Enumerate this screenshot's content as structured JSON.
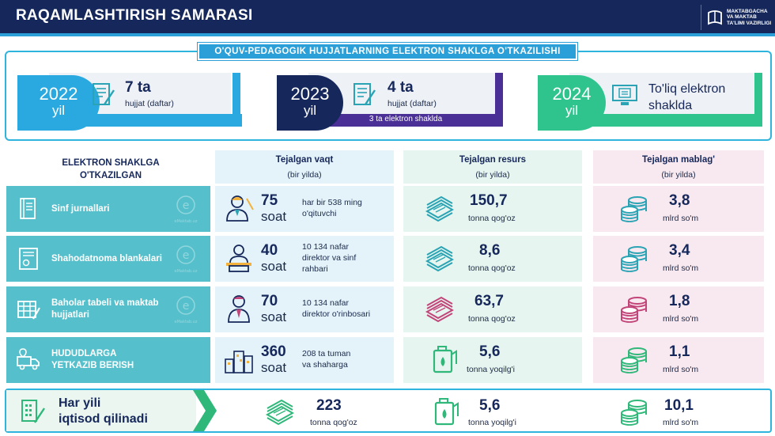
{
  "header": {
    "title": "RAQAMLASHTIRISH SAMARASI",
    "logo_lines": [
      "MAKTABGACHA",
      "VA MAKTAB",
      "TA'LIMI VAZIRLIGI"
    ]
  },
  "top": {
    "banner": "O'QUV-PEDAGOGIK HUJJATLARNING ELEKTRON SHAKLGA O'TKAZILISHI",
    "years": [
      {
        "year": "2022",
        "label": "yil",
        "count": "7 ta",
        "sub": "hujjat (daftar)",
        "color": "#29a9e0",
        "icon": "document-icon"
      },
      {
        "year": "2023",
        "label": "yil",
        "count": "4 ta",
        "sub": "hujjat (daftar)",
        "under": "3 ta elektron shaklda",
        "color": "#16285b",
        "accent": "#4a2f97",
        "icon": "document-icon"
      },
      {
        "year": "2024",
        "label": "yil",
        "full_line1": "To'liq elektron",
        "full_line2": "shaklda",
        "color": "#2fc48d",
        "icon": "computer-icon"
      }
    ]
  },
  "table": {
    "left_head_line1": "ELEKTRON SHAKLGA",
    "left_head_line2": "O'TKAZILGAN",
    "columns": [
      {
        "title": "Tejalgan vaqt",
        "sub": "(bir yilda)"
      },
      {
        "title": "Tejalgan resurs",
        "sub": "(bir yilda)"
      },
      {
        "title": "Tejalgan mablag'",
        "sub": "(bir yilda)"
      }
    ],
    "rows": [
      {
        "label": "Sinf jurnallari",
        "time": "75",
        "time_unit": "soat",
        "who_line1": "har bir 538 ming",
        "who_line2": "o'qituvchi",
        "res": "150,7",
        "res_unit": "tonna qog'oz",
        "money": "3,8",
        "money_unit": "mlrd so'm",
        "res_color": "#2aa4b4",
        "money_color": "#2aa4b4",
        "icon": "journal-icon"
      },
      {
        "label": "Shahodatnoma blankalari",
        "time": "40",
        "time_unit": "soat",
        "who_line1": "10 134 nafar",
        "who_line2": "direktor va sinf",
        "who_line3": "rahbari",
        "res": "8,6",
        "res_unit": "tonna qog'oz",
        "money": "3,4",
        "money_unit": "mlrd so'm",
        "res_color": "#2aa4b4",
        "money_color": "#2aa4b4",
        "icon": "certificate-icon"
      },
      {
        "label_line1": "Baholar tabeli va maktab",
        "label_line2": "hujjatlari",
        "time": "70",
        "time_unit": "soat",
        "who_line1": "10 134 nafar",
        "who_line2": "direktor o'rinbosari",
        "res": "63,7",
        "res_unit": "tonna qog'oz",
        "money": "1,8",
        "money_unit": "mlrd so'm",
        "res_color": "#c2457a",
        "money_color": "#c2457a",
        "icon": "gradebook-icon"
      },
      {
        "label_line1": "HUDUDLARGA",
        "label_line2": "YETKAZIB BERISH",
        "time": "360",
        "time_unit": "soat",
        "who_line1": "208 ta tuman",
        "who_line2": "va shaharga",
        "res": "5,6",
        "res_unit": "tonna yoqilg'i",
        "money": "1,1",
        "money_unit": "mlrd so'm",
        "res_color": "#2fb87a",
        "money_color": "#2fb87a",
        "icon": "delivery-truck-icon"
      }
    ]
  },
  "bottom": {
    "line1": "Har yili",
    "line2": "iqtisod qilinadi",
    "paper": "223",
    "paper_unit": "tonna qog'oz",
    "fuel": "5,6",
    "fuel_unit": "tonna yoqilg'i",
    "money": "10,1",
    "money_unit": "mlrd so'm"
  },
  "watermark_text": "eMaktab.uz"
}
